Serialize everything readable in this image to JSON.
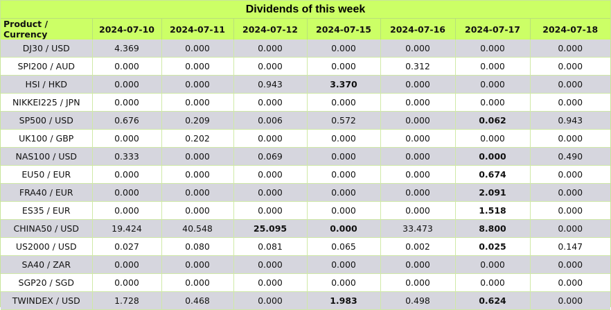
{
  "title": "Dividends of this week",
  "columns": [
    "Product / Currency",
    "2024-07-10",
    "2024-07-11",
    "2024-07-12",
    "2024-07-15",
    "2024-07-16",
    "2024-07-17",
    "2024-07-18"
  ],
  "rows": [
    {
      "product": "DJ30 / USD",
      "values": [
        "4.369",
        "0.000",
        "0.000",
        "0.000",
        "0.000",
        "0.000",
        "0.000"
      ],
      "bold": []
    },
    {
      "product": "SPI200 / AUD",
      "values": [
        "0.000",
        "0.000",
        "0.000",
        "0.000",
        "0.312",
        "0.000",
        "0.000"
      ],
      "bold": []
    },
    {
      "product": "HSI / HKD",
      "values": [
        "0.000",
        "0.000",
        "0.943",
        "3.370",
        "0.000",
        "0.000",
        "0.000"
      ],
      "bold": [
        3
      ]
    },
    {
      "product": "NIKKEI225 / JPN",
      "values": [
        "0.000",
        "0.000",
        "0.000",
        "0.000",
        "0.000",
        "0.000",
        "0.000"
      ],
      "bold": []
    },
    {
      "product": "SP500 / USD",
      "values": [
        "0.676",
        "0.209",
        "0.006",
        "0.572",
        "0.000",
        "0.062",
        "0.943"
      ],
      "bold": [
        5
      ]
    },
    {
      "product": "UK100 / GBP",
      "values": [
        "0.000",
        "0.202",
        "0.000",
        "0.000",
        "0.000",
        "0.000",
        "0.000"
      ],
      "bold": []
    },
    {
      "product": "NAS100 / USD",
      "values": [
        "0.333",
        "0.000",
        "0.069",
        "0.000",
        "0.000",
        "0.000",
        "0.490"
      ],
      "bold": [
        5
      ]
    },
    {
      "product": "EU50 / EUR",
      "values": [
        "0.000",
        "0.000",
        "0.000",
        "0.000",
        "0.000",
        "0.674",
        "0.000"
      ],
      "bold": [
        5
      ]
    },
    {
      "product": "FRA40 / EUR",
      "values": [
        "0.000",
        "0.000",
        "0.000",
        "0.000",
        "0.000",
        "2.091",
        "0.000"
      ],
      "bold": [
        5
      ]
    },
    {
      "product": "ES35 / EUR",
      "values": [
        "0.000",
        "0.000",
        "0.000",
        "0.000",
        "0.000",
        "1.518",
        "0.000"
      ],
      "bold": [
        5
      ]
    },
    {
      "product": "CHINA50 / USD",
      "values": [
        "19.424",
        "40.548",
        "25.095",
        "0.000",
        "33.473",
        "8.800",
        "0.000"
      ],
      "bold": [
        2,
        3,
        5
      ]
    },
    {
      "product": "US2000 / USD",
      "values": [
        "0.027",
        "0.080",
        "0.081",
        "0.065",
        "0.002",
        "0.025",
        "0.147"
      ],
      "bold": [
        5
      ]
    },
    {
      "product": "SA40 / ZAR",
      "values": [
        "0.000",
        "0.000",
        "0.000",
        "0.000",
        "0.000",
        "0.000",
        "0.000"
      ],
      "bold": []
    },
    {
      "product": "SGP20 / SGD",
      "values": [
        "0.000",
        "0.000",
        "0.000",
        "0.000",
        "0.000",
        "0.000",
        "0.000"
      ],
      "bold": []
    },
    {
      "product": "TWINDEX / USD",
      "values": [
        "1.728",
        "0.468",
        "0.000",
        "1.983",
        "0.498",
        "0.624",
        "0.000"
      ],
      "bold": [
        3,
        5
      ]
    }
  ],
  "colors": {
    "header_bg": "#ccff66",
    "row_gray": "#d6d6de",
    "row_white": "#ffffff",
    "grid": "#cfe9a6"
  }
}
